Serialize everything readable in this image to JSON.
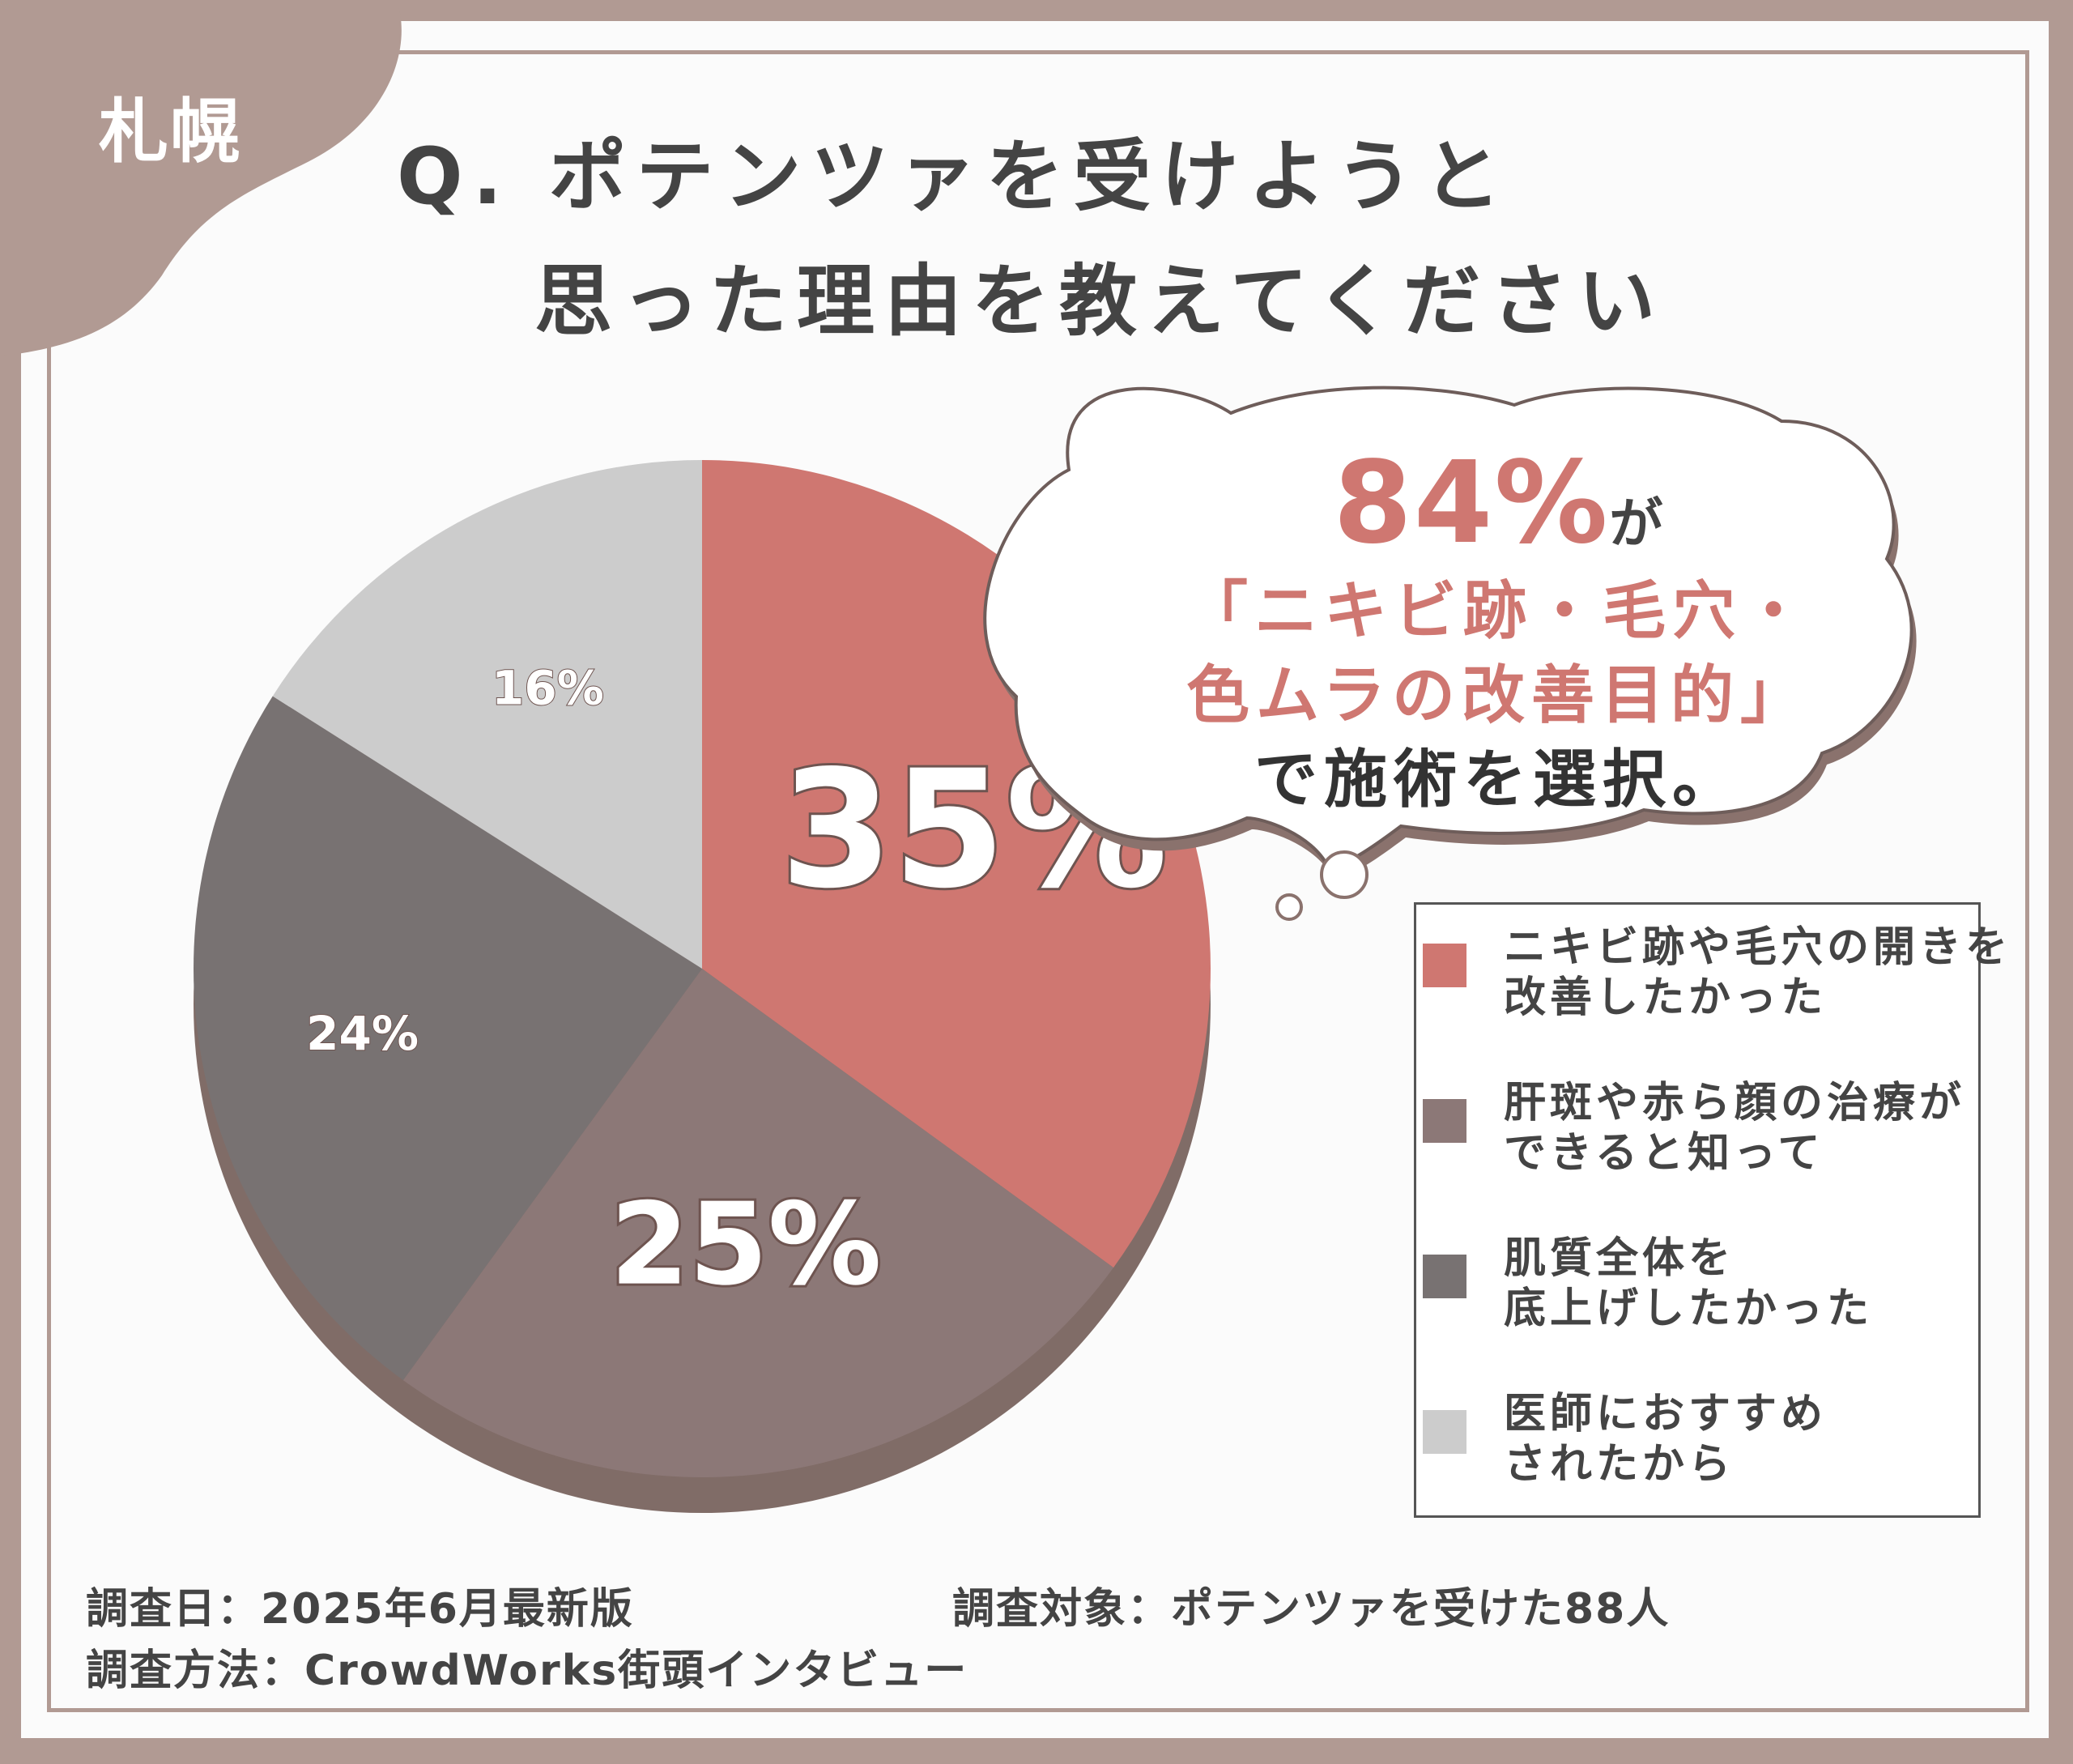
{
  "city_label": "札幌",
  "title": {
    "line1": "Q. ポテンツァを受けようと",
    "line2": "思った理由を教えてください"
  },
  "callout": {
    "percent": "84%",
    "particle": "が",
    "line2": "「ニキビ跡・毛穴・",
    "line3": "色ムラの改善目的」",
    "line4": "で施術を選択。"
  },
  "chart_data": {
    "type": "pie",
    "slices": [
      {
        "label": "ニキビ跡や毛穴の開きを改善したかった",
        "value": 35,
        "value_label": "35%",
        "color": "#cf7771"
      },
      {
        "label": "肝斑や赤ら顔の治療ができると知って",
        "value": 25,
        "value_label": "25%",
        "color": "#8c7877"
      },
      {
        "label": "肌質全体を底上げしたかった",
        "value": 24,
        "value_label": "24%",
        "color": "#787272"
      },
      {
        "label": "医師におすすめされたから",
        "value": 16,
        "value_label": "16%",
        "color": "#cccccc"
      }
    ],
    "start_angle": "12 o'clock",
    "direction": "clockwise",
    "legend_position": "right"
  },
  "legend": [
    {
      "line1": "ニキビ跡や毛穴の開きを",
      "line2": "改善したかった",
      "color": "#cf7771"
    },
    {
      "line1": "肝斑や赤ら顔の治療が",
      "line2": "できると知って",
      "color": "#8c7877"
    },
    {
      "line1": "肌質全体を",
      "line2": "底上げしたかった",
      "color": "#787272"
    },
    {
      "line1": "医師におすすめ",
      "line2": "されたから",
      "color": "#cccccc"
    }
  ],
  "footer": {
    "date": "調査日：2025年6月最新版",
    "target": "調査対象：ポテンツァを受けた88人",
    "method": "調査方法：CrowdWorks街頭インタビュー"
  }
}
